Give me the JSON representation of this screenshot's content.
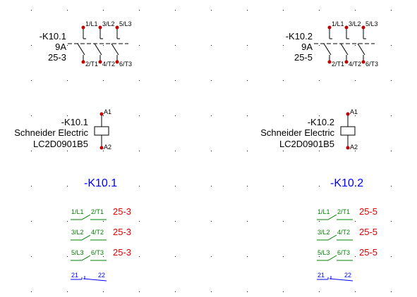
{
  "contactors": [
    {
      "tag": "-K10.1",
      "rating": "9A",
      "location": "25-3",
      "pins_top": [
        "1/L1",
        "3/L2",
        "5/L3"
      ],
      "pins_bottom": [
        "2/T1",
        "4/T2",
        "6/T3"
      ],
      "coil": {
        "tag": "-K10.1",
        "manufacturer": "Schneider Electric",
        "part_number": "LC2D0901B5",
        "pin_top": "A1",
        "pin_bottom": "A2"
      },
      "summary": {
        "title": "-K10.1",
        "contacts": [
          {
            "a": "1/L1",
            "b": "2/T1",
            "ref": "25-3"
          },
          {
            "a": "3/L2",
            "b": "4/T2",
            "ref": "25-3"
          },
          {
            "a": "5/L3",
            "b": "6/T3",
            "ref": "25-3"
          }
        ],
        "aux": {
          "a": "21",
          "b": "22"
        }
      }
    },
    {
      "tag": "-K10.2",
      "rating": "9A",
      "location": "25-5",
      "pins_top": [
        "1/L1",
        "3/L2",
        "5/L3"
      ],
      "pins_bottom": [
        "2/T1",
        "4/T2",
        "6/T3"
      ],
      "coil": {
        "tag": "-K10.2",
        "manufacturer": "Schneider Electric",
        "part_number": "LC2D0901B5",
        "pin_top": "A1",
        "pin_bottom": "A2"
      },
      "summary": {
        "title": "-K10.2",
        "contacts": [
          {
            "a": "1/L1",
            "b": "2/T1",
            "ref": "25-5"
          },
          {
            "a": "3/L2",
            "b": "4/T2",
            "ref": "25-5"
          },
          {
            "a": "5/L3",
            "b": "6/T3",
            "ref": "25-5"
          }
        ],
        "aux": {
          "a": "21",
          "b": "22"
        }
      }
    }
  ],
  "colors": {
    "terminal": "#c00000",
    "contact_label": "#008000",
    "aux_label": "#0000ff",
    "reference": "#e00000",
    "title": "#0000ff",
    "grid_dot": "#000000"
  }
}
